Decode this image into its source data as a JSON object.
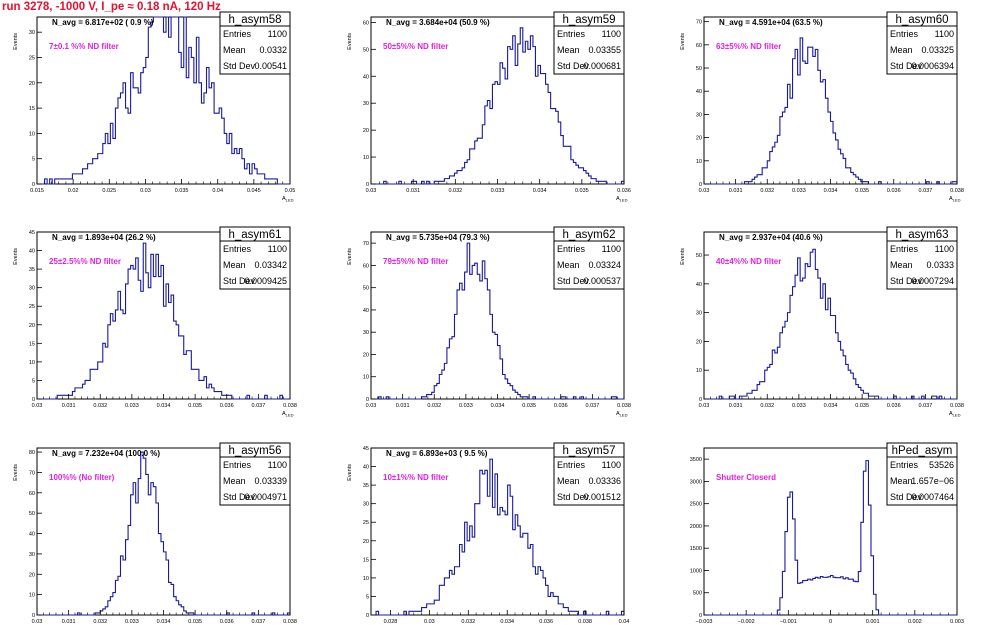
{
  "page_title": "run 3278, -1000 V, I_pe ≈ 0.18 nA, 120 Hz",
  "colors": {
    "histogram": "#1a1a9e",
    "annotation": "#e020e0",
    "title_red": "#e8102e",
    "frame": "#000000"
  },
  "stats_labels": {
    "entries": "Entries",
    "mean": "Mean",
    "std": "Std Dev"
  },
  "chart_data": [
    {
      "type": "histogram",
      "name": "h_asym58",
      "navg": "N_avg = 6.817e+02 ( 0.9 %)",
      "annotation": "7±0.1 %% ND filter",
      "entries": "1100",
      "mean": "0.0332",
      "std": "0.00541",
      "ylabel": "Events",
      "xlabel": "A_LED",
      "xlim": [
        0.015,
        0.05
      ],
      "ylim": [
        0,
        33
      ],
      "xticks": [
        0.015,
        0.02,
        0.025,
        0.03,
        0.035,
        0.04,
        0.045,
        0.05
      ],
      "xtick_labels": [
        "0.015",
        "0.02",
        "0.025",
        "0.03",
        "0.035",
        "0.04",
        "0.045",
        "0.05"
      ],
      "yticks": [
        0,
        5,
        10,
        15,
        20,
        25,
        30
      ],
      "shape": "gauss",
      "mu": 0.0332,
      "sigma": 0.00541,
      "peak": 30,
      "noise": 0.3,
      "nbins": 100,
      "seed": 58
    },
    {
      "type": "histogram",
      "name": "h_asym59",
      "navg": "N_avg = 3.684e+04 (50.9 %)",
      "annotation": "50±5%% ND filter",
      "entries": "1100",
      "mean": "0.03355",
      "std": "0.000681",
      "ylabel": "Events",
      "xlabel": "A_LED",
      "xlim": [
        0.03,
        0.036
      ],
      "ylim": [
        0,
        62
      ],
      "xticks": [
        0.03,
        0.031,
        0.032,
        0.033,
        0.034,
        0.035,
        0.036
      ],
      "xtick_labels": [
        "0.03",
        "0.031",
        "0.032",
        "0.033",
        "0.034",
        "0.035",
        "0.036"
      ],
      "yticks": [
        0,
        10,
        20,
        30,
        40,
        50,
        60
      ],
      "shape": "gauss",
      "mu": 0.03355,
      "sigma": 0.000681,
      "peak": 52,
      "noise": 0.15,
      "nbins": 100,
      "seed": 59
    },
    {
      "type": "histogram",
      "name": "h_asym60",
      "navg": "N_avg = 4.591e+04 (63.5 %)",
      "annotation": "63±5%% ND filter",
      "entries": "1100",
      "mean": "0.03325",
      "std": "0.0006394",
      "ylabel": "Events",
      "xlabel": "A_LED",
      "xlim": [
        0.03,
        0.038
      ],
      "ylim": [
        0,
        72
      ],
      "xticks": [
        0.03,
        0.031,
        0.032,
        0.033,
        0.034,
        0.035,
        0.036,
        0.037,
        0.038
      ],
      "xtick_labels": [
        "0.03",
        "0.031",
        "0.032",
        "0.033",
        "0.034",
        "0.035",
        "0.036",
        "0.037",
        "0.038"
      ],
      "yticks": [
        0,
        10,
        20,
        30,
        40,
        50,
        60,
        70
      ],
      "shape": "gauss",
      "mu": 0.03325,
      "sigma": 0.0006394,
      "peak": 58,
      "noise": 0.15,
      "nbins": 100,
      "seed": 60
    },
    {
      "type": "histogram",
      "name": "h_asym61",
      "navg": "N_avg = 1.893e+04 (26.2 %)",
      "annotation": "25±2.5%% ND filter",
      "entries": "1100",
      "mean": "0.03342",
      "std": "0.0009425",
      "ylabel": "Events",
      "xlabel": "A_LED",
      "xlim": [
        0.03,
        0.038
      ],
      "ylim": [
        0,
        45
      ],
      "xticks": [
        0.03,
        0.031,
        0.032,
        0.033,
        0.034,
        0.035,
        0.036,
        0.037,
        0.038
      ],
      "xtick_labels": [
        "0.03",
        "0.031",
        "0.032",
        "0.033",
        "0.034",
        "0.035",
        "0.036",
        "0.037",
        "0.038"
      ],
      "yticks": [
        0,
        5,
        10,
        15,
        20,
        25,
        30,
        35,
        40,
        45
      ],
      "shape": "gauss",
      "mu": 0.03342,
      "sigma": 0.0009425,
      "peak": 36,
      "noise": 0.2,
      "nbins": 100,
      "seed": 61
    },
    {
      "type": "histogram",
      "name": "h_asym62",
      "navg": "N_avg = 5.735e+04 (79.3 %)",
      "annotation": "79±5%% ND filter",
      "entries": "1100",
      "mean": "0.03324",
      "std": "0.000537",
      "ylabel": "Events",
      "xlabel": "A_LED",
      "xlim": [
        0.03,
        0.038
      ],
      "ylim": [
        0,
        75
      ],
      "xticks": [
        0.03,
        0.031,
        0.032,
        0.033,
        0.034,
        0.035,
        0.036,
        0.037,
        0.038
      ],
      "xtick_labels": [
        "0.03",
        "0.031",
        "0.032",
        "0.033",
        "0.034",
        "0.035",
        "0.036",
        "0.037",
        "0.038"
      ],
      "yticks": [
        0,
        10,
        20,
        30,
        40,
        50,
        60,
        70
      ],
      "shape": "gauss",
      "mu": 0.03324,
      "sigma": 0.000537,
      "peak": 65,
      "noise": 0.15,
      "nbins": 100,
      "seed": 62
    },
    {
      "type": "histogram",
      "name": "h_asym63",
      "navg": "N_avg = 2.937e+04 (40.6 %)",
      "annotation": "40±4%% ND filter",
      "entries": "1100",
      "mean": "0.0333",
      "std": "0.0007294",
      "ylabel": "Events",
      "xlabel": "A_LED",
      "xlim": [
        0.03,
        0.038
      ],
      "ylim": [
        0,
        58
      ],
      "xticks": [
        0.03,
        0.031,
        0.032,
        0.033,
        0.034,
        0.035,
        0.036,
        0.037,
        0.038
      ],
      "xtick_labels": [
        "0.03",
        "0.031",
        "0.032",
        "0.033",
        "0.034",
        "0.035",
        "0.036",
        "0.037",
        "0.038"
      ],
      "yticks": [
        0,
        10,
        20,
        30,
        40,
        50
      ],
      "shape": "gauss",
      "mu": 0.0333,
      "sigma": 0.0007294,
      "peak": 48,
      "noise": 0.15,
      "nbins": 100,
      "seed": 63
    },
    {
      "type": "histogram",
      "name": "h_asym56",
      "navg": "N_avg = 7.232e+04 (100.0 %)",
      "annotation": "100%% (No filter)",
      "entries": "1100",
      "mean": "0.03339",
      "std": "0.0004971",
      "ylabel": "Events",
      "xlabel": "A_LED",
      "xlim": [
        0.03,
        0.038
      ],
      "ylim": [
        0,
        82
      ],
      "xticks": [
        0.03,
        0.031,
        0.032,
        0.033,
        0.034,
        0.035,
        0.036,
        0.037,
        0.038
      ],
      "xtick_labels": [
        "0.03",
        "0.031",
        "0.032",
        "0.033",
        "0.034",
        "0.035",
        "0.036",
        "0.037",
        "0.038"
      ],
      "yticks": [
        0,
        10,
        20,
        30,
        40,
        50,
        60,
        70,
        80
      ],
      "shape": "gauss",
      "mu": 0.03339,
      "sigma": 0.0004971,
      "peak": 70,
      "noise": 0.15,
      "nbins": 100,
      "seed": 56
    },
    {
      "type": "histogram",
      "name": "h_asym57",
      "navg": "N_avg = 6.893e+03 ( 9.5 %)",
      "annotation": "10±1%% ND filter",
      "entries": "1100",
      "mean": "0.03336",
      "std": "0.001512",
      "ylabel": "Events",
      "xlabel": "A_LED",
      "xlim": [
        0.027,
        0.04
      ],
      "ylim": [
        0,
        45
      ],
      "xticks": [
        0.028,
        0.03,
        0.032,
        0.034,
        0.036,
        0.038,
        0.04
      ],
      "xtick_labels": [
        "0.028",
        "0.03",
        "0.032",
        "0.034",
        "0.036",
        "0.038",
        "0.04"
      ],
      "yticks": [
        0,
        5,
        10,
        15,
        20,
        25,
        30,
        35,
        40,
        45
      ],
      "shape": "gauss",
      "mu": 0.03336,
      "sigma": 0.001512,
      "peak": 36,
      "noise": 0.25,
      "nbins": 100,
      "seed": 57
    },
    {
      "type": "histogram",
      "name": "hPed_asym",
      "navg": "",
      "annotation": "Shutter Closerd",
      "entries": "53526",
      "mean": "1.657e−06",
      "std": "0.0007464",
      "ylabel": "",
      "xlabel": "",
      "xlim": [
        -0.003,
        0.003
      ],
      "ylim": [
        0,
        3750
      ],
      "xticks": [
        -0.003,
        -0.002,
        -0.001,
        0,
        0.001,
        0.002,
        0.003
      ],
      "xtick_labels": [
        "−0.003",
        "−0.002",
        "−0.001",
        "0",
        "0.001",
        "0.002",
        "0.003"
      ],
      "yticks": [
        0,
        500,
        1000,
        1500,
        2000,
        2500,
        3000,
        3500
      ],
      "shape": "ped",
      "nbins": 100,
      "seed": 1
    }
  ]
}
